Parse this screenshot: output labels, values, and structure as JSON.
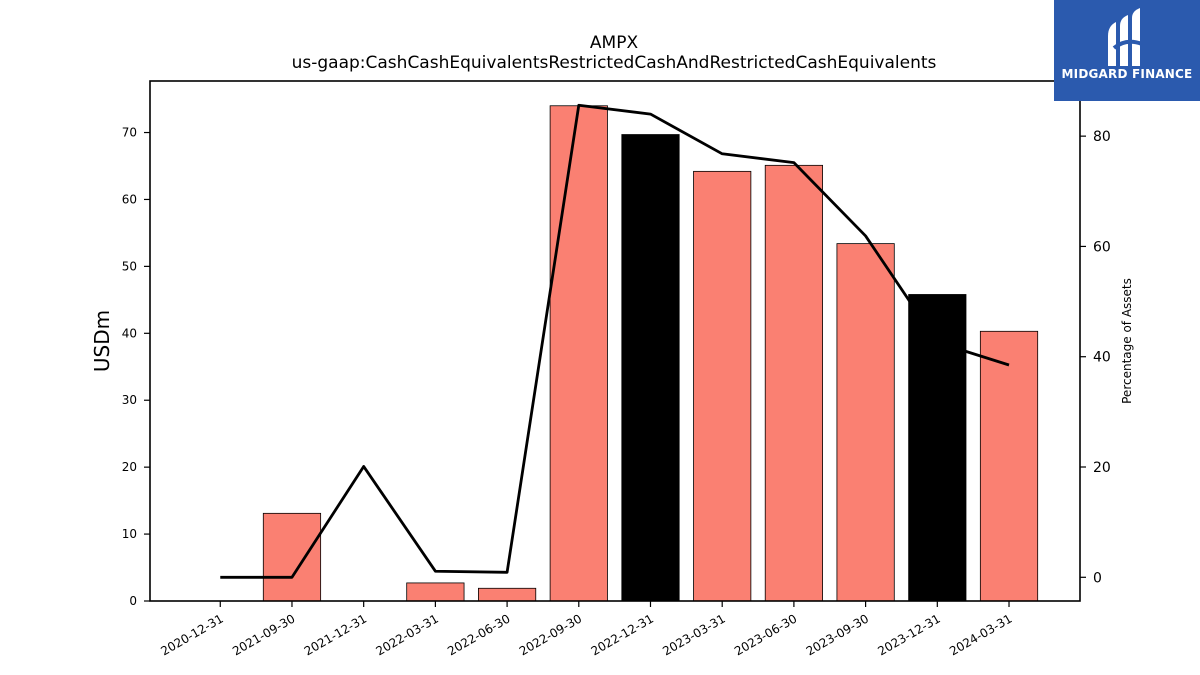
{
  "brand": {
    "name": "MIDGARD FINANCE",
    "bg_color": "#2b5aae"
  },
  "chart_data": {
    "type": "bar",
    "title": "AMPX",
    "subtitle": "us-gaap:CashCashEquivalentsRestrictedCashAndRestrictedCashEquivalents",
    "ylabel": "USDm",
    "y2label": "Percentage of Assets",
    "categories": [
      "2020-12-31",
      "2021-09-30",
      "2021-12-31",
      "2022-03-31",
      "2022-06-30",
      "2022-09-30",
      "2022-12-31",
      "2023-03-31",
      "2023-06-30",
      "2023-09-30",
      "2023-12-31",
      "2024-03-31"
    ],
    "series": [
      {
        "axis": "left",
        "kind": "bar",
        "values": [
          0,
          13.1,
          0,
          2.7,
          1.9,
          74.0,
          69.7,
          64.2,
          65.1,
          53.4,
          45.8,
          40.3
        ],
        "colors": [
          "#fa8072",
          "#fa8072",
          "#fa8072",
          "#fa8072",
          "#fa8072",
          "#fa8072",
          "#000000",
          "#fa8072",
          "#fa8072",
          "#fa8072",
          "#000000",
          "#fa8072"
        ]
      },
      {
        "axis": "right",
        "kind": "line",
        "color": "#000000",
        "values": [
          0,
          0,
          20.1,
          1.1,
          0.9,
          85.6,
          84.0,
          76.8,
          75.2,
          61.9,
          42.6,
          38.5
        ]
      }
    ],
    "yticks": [
      0,
      10,
      20,
      30,
      40,
      50,
      60,
      70
    ],
    "y2ticks": [
      0,
      20,
      40,
      60,
      80
    ],
    "ylim": [
      0,
      77.7
    ],
    "y2lim": [
      -4.3,
      90.0
    ],
    "grid": false
  }
}
